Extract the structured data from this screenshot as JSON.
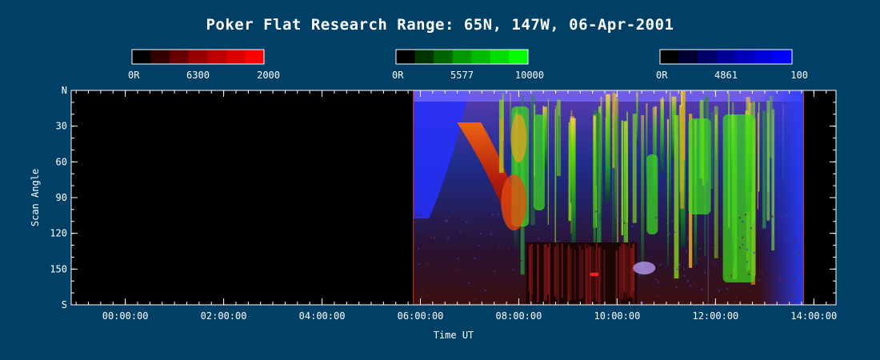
{
  "chart_data": {
    "type": "heatmap",
    "title": "Poker Flat Research Range: 65N, 147W, 06-Apr-2001",
    "xlabel": "Time UT",
    "ylabel": "Scan Angle",
    "x_ticks": [
      "00:00:00",
      "02:00:00",
      "04:00:00",
      "06:00:00",
      "08:00:00",
      "10:00:00",
      "12:00:00",
      "14:00:00"
    ],
    "x_tick_hours": [
      0,
      2,
      4,
      6,
      8,
      10,
      12,
      14
    ],
    "xlim_hours": [
      -1.1,
      14.45
    ],
    "y_ticks": [
      "N",
      "30",
      "60",
      "90",
      "120",
      "150",
      "S"
    ],
    "y_tick_degrees": [
      0,
      30,
      60,
      90,
      120,
      150,
      180
    ],
    "ylim_degrees": [
      0,
      180
    ],
    "data_start_hour": 5.85,
    "data_end_hour": 13.8,
    "colorbars": [
      {
        "wavelength": "6300",
        "min_label": "0R",
        "max_label": "2000",
        "colors": [
          "#000000",
          "#330000",
          "#660000",
          "#990000",
          "#bb0000",
          "#dd0000",
          "#ff0000"
        ]
      },
      {
        "wavelength": "5577",
        "min_label": "0R",
        "max_label": "10000",
        "colors": [
          "#000000",
          "#003300",
          "#006600",
          "#009900",
          "#00bb00",
          "#00dd00",
          "#00ff00"
        ]
      },
      {
        "wavelength": "4861",
        "min_label": "0R",
        "max_label": "100",
        "colors": [
          "#000000",
          "#000033",
          "#000066",
          "#000099",
          "#0000bb",
          "#0000dd",
          "#0000ff"
        ]
      }
    ]
  }
}
